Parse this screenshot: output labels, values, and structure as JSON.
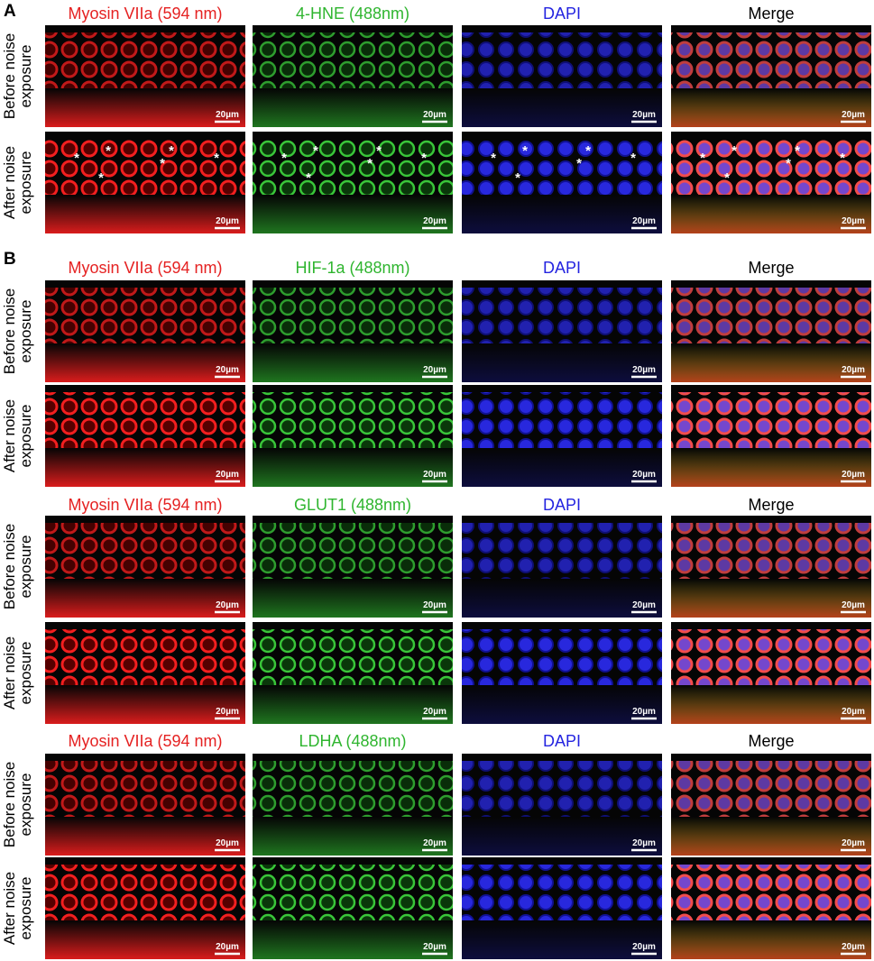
{
  "panels": [
    {
      "label": "A",
      "groups": [
        {
          "columns": [
            "Myosin VIIa (594 nm)",
            "4-HNE (488nm)",
            "DAPI",
            "Merge"
          ],
          "rows": [
            {
              "label_lines": [
                "Before noise",
                "exposure"
              ]
            },
            {
              "label_lines": [
                "After noise",
                "exposure"
              ]
            }
          ]
        }
      ]
    },
    {
      "label": "B",
      "groups": [
        {
          "columns": [
            "Myosin VIIa (594 nm)",
            "HIF-1a (488nm)",
            "DAPI",
            "Merge"
          ],
          "rows": [
            {
              "label_lines": [
                "Before noise",
                "exposure"
              ]
            },
            {
              "label_lines": [
                "After noise",
                "exposure"
              ]
            }
          ]
        },
        {
          "columns": [
            "Myosin VIIa (594 nm)",
            "GLUT1 (488nm)",
            "DAPI",
            "Merge"
          ],
          "rows": [
            {
              "label_lines": [
                "Before noise",
                "exposure"
              ]
            },
            {
              "label_lines": [
                "After noise",
                "exposure"
              ]
            }
          ]
        },
        {
          "columns": [
            "Myosin VIIa (594 nm)",
            "LDHA (488nm)",
            "DAPI",
            "Merge"
          ],
          "rows": [
            {
              "label_lines": [
                "Before noise",
                "exposure"
              ]
            },
            {
              "label_lines": [
                "After noise",
                "exposure"
              ]
            }
          ]
        }
      ]
    }
  ],
  "scale_bar": "20µm",
  "asterisk": "*"
}
